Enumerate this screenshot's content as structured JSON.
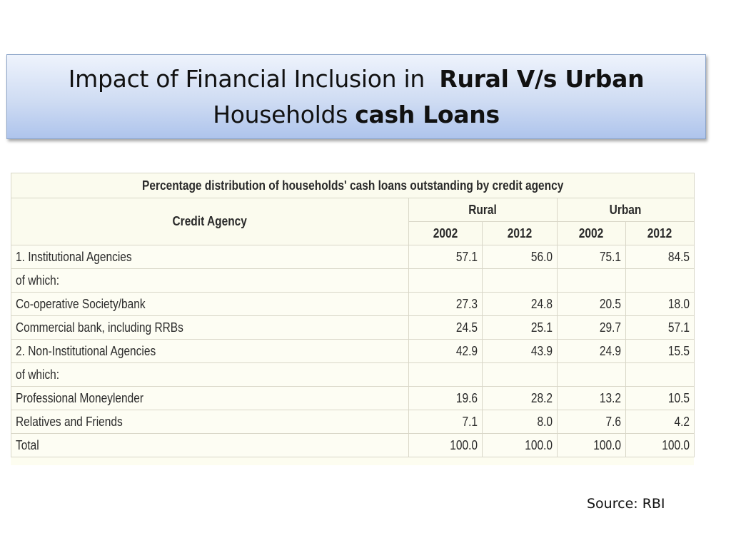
{
  "slide": {
    "title_part1": "Impact of Financial Inclusion in",
    "title_bold1": "Rural V/s Urban",
    "title_part2": "Households",
    "title_bold2": "cash Loans"
  },
  "table": {
    "caption": "Percentage distribution of households' cash loans outstanding by credit agency",
    "header": {
      "agency": "Credit Agency",
      "rural": "Rural",
      "urban": "Urban",
      "years": [
        "2002",
        "2012",
        "2002",
        "2012"
      ]
    },
    "rows": [
      {
        "label": "1. Institutional Agencies",
        "values": [
          "57.1",
          "56.0",
          "75.1",
          "84.5"
        ]
      },
      {
        "label": "of which:",
        "values": [
          "",
          "",
          "",
          ""
        ]
      },
      {
        "label": "Co-operative Society/bank",
        "values": [
          "27.3",
          "24.8",
          "20.5",
          "18.0"
        ]
      },
      {
        "label": "Commercial bank, including RRBs",
        "values": [
          "24.5",
          "25.1",
          "29.7",
          "57.1"
        ]
      },
      {
        "label": "2. Non-Institutional Agencies",
        "values": [
          "42.9",
          "43.9",
          "24.9",
          "15.5"
        ]
      },
      {
        "label": "of which:",
        "values": [
          "",
          "",
          "",
          ""
        ]
      },
      {
        "label": "Professional Moneylender",
        "values": [
          "19.6",
          "28.2",
          "13.2",
          "10.5"
        ]
      },
      {
        "label": "Relatives and Friends",
        "values": [
          "7.1",
          "8.0",
          "7.6",
          "4.2"
        ]
      },
      {
        "label": "Total",
        "values": [
          "100.0",
          "100.0",
          "100.0",
          "100.0"
        ]
      }
    ]
  },
  "source": "Source: RBI"
}
